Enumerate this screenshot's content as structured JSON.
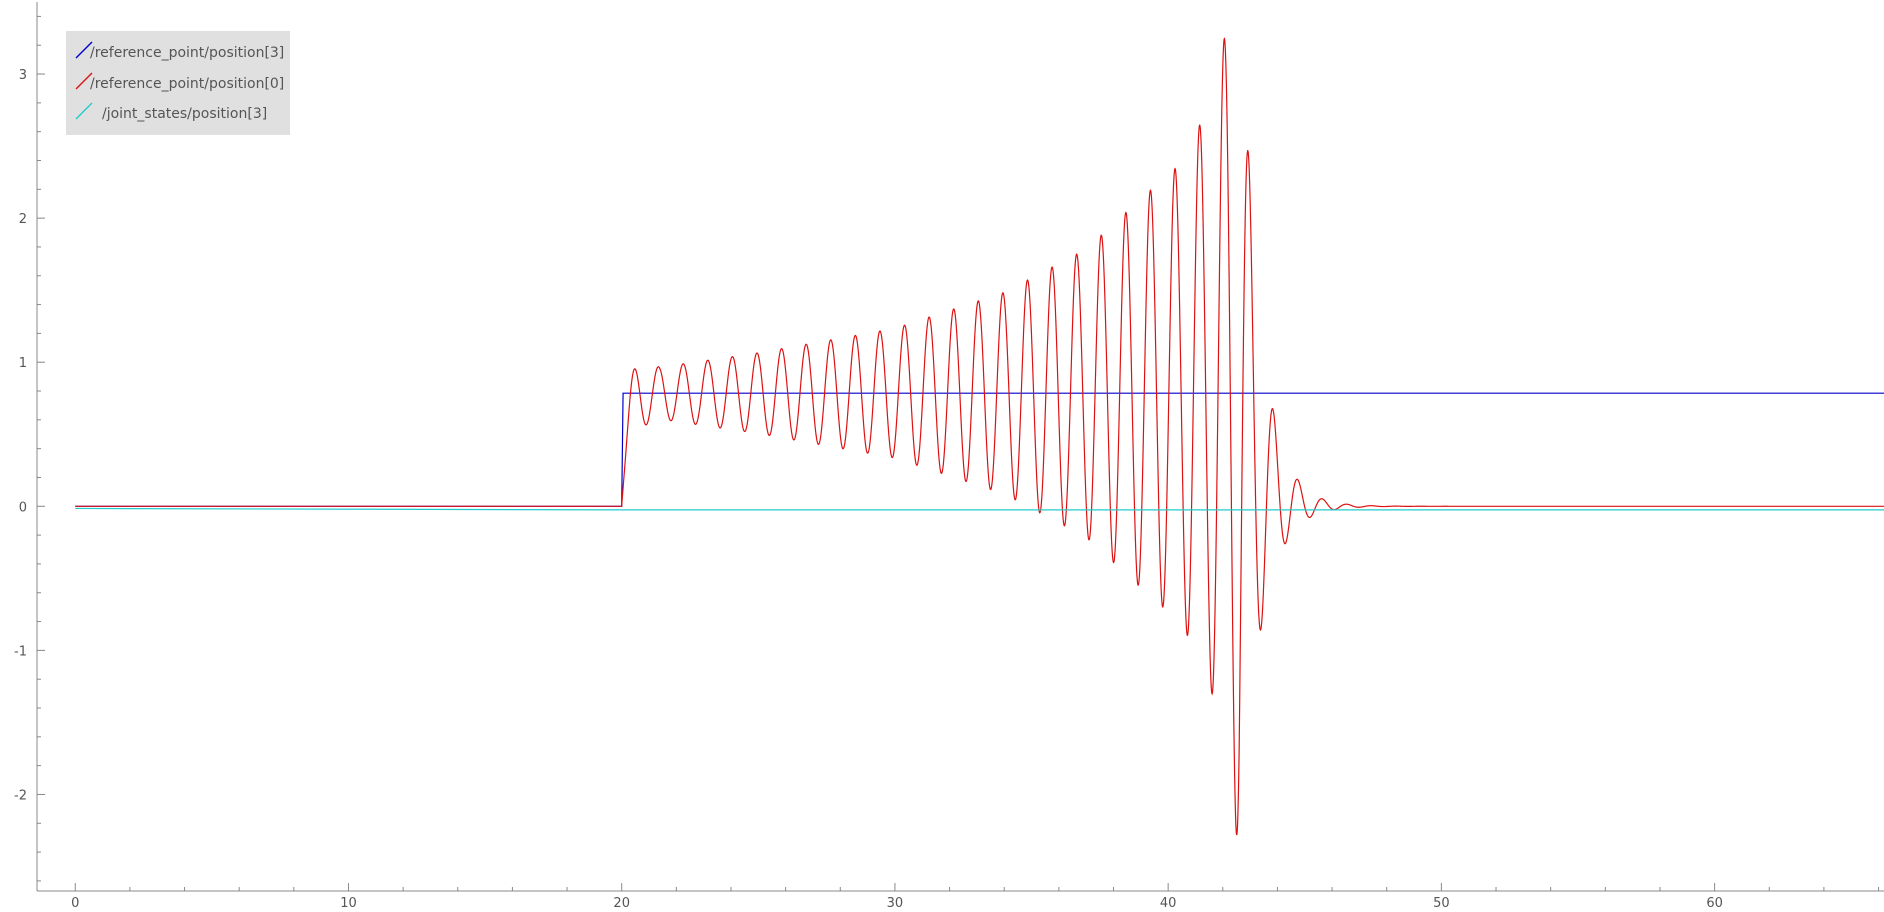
{
  "chart_data": {
    "type": "line",
    "title": "",
    "xlabel": "",
    "ylabel": "",
    "xlim": [
      -1.4,
      66.2
    ],
    "ylim": [
      -2.67,
      3.5
    ],
    "x_ticks": [
      0,
      10,
      20,
      30,
      40,
      50,
      60
    ],
    "y_ticks": [
      -2,
      -1,
      0,
      1,
      2,
      3
    ],
    "grid": false,
    "legend_position": "top-left",
    "series": [
      {
        "name": "/reference_point/position[3]",
        "color": "#0000cc",
        "x": [
          0,
          20,
          20.05,
          66.2
        ],
        "y": [
          0,
          0,
          0.785,
          0.785
        ]
      },
      {
        "name": "/reference_point/position[0]",
        "color": "#dd1111",
        "model": {
          "description": "oscillating response starting at t=20, growing envelope up to ~t=42.6 then rapid decay",
          "start": 20.0,
          "offset": 0.785,
          "rise_tau": 0.18,
          "period_start": 0.9,
          "period_end": 0.9,
          "peak_time": 42.6,
          "amp_points": [
            [
              20.0,
              0.28
            ],
            [
              21.4,
              0.18
            ],
            [
              25,
              0.28
            ],
            [
              30,
              0.45
            ],
            [
              34,
              0.7
            ],
            [
              37,
              1.0
            ],
            [
              39,
              1.35
            ],
            [
              40.5,
              1.6
            ],
            [
              41.5,
              2.0
            ],
            [
              42.1,
              2.5
            ],
            [
              42.6,
              3.2
            ]
          ],
          "decay_tau": 0.72,
          "decay_period": 0.9,
          "decay_center_start": 0.785,
          "decay_center_tau": 0.6,
          "x_end": 66.2
        }
      },
      {
        "name": "/joint_states/position[3]",
        "color": "#22cccc",
        "x": [
          0,
          20,
          66.2
        ],
        "y": [
          -0.015,
          -0.025,
          -0.025
        ]
      }
    ]
  }
}
